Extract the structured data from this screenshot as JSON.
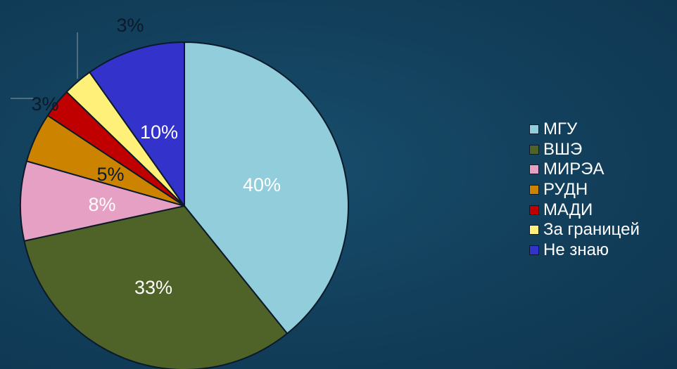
{
  "chart_data": {
    "type": "pie",
    "title": "",
    "slices": [
      {
        "label": "МГУ",
        "value": 40,
        "display": "40%",
        "color": "#92cddc"
      },
      {
        "label": "ВШЭ",
        "value": 33,
        "display": "33%",
        "color": "#4f6228"
      },
      {
        "label": "МИРЭА",
        "value": 8,
        "display": "8%",
        "color": "#e6a0c4"
      },
      {
        "label": "РУДН",
        "value": 5,
        "display": "5%",
        "color": "#cc8400"
      },
      {
        "label": "МАДИ",
        "value": 3,
        "display": "3%",
        "color": "#c00000"
      },
      {
        "label": "За границей",
        "value": 3,
        "display": "3%",
        "color": "#fff07a"
      },
      {
        "label": "Не знаю",
        "value": 10,
        "display": "10%",
        "color": "#3333cc"
      }
    ],
    "legend_position": "right"
  }
}
